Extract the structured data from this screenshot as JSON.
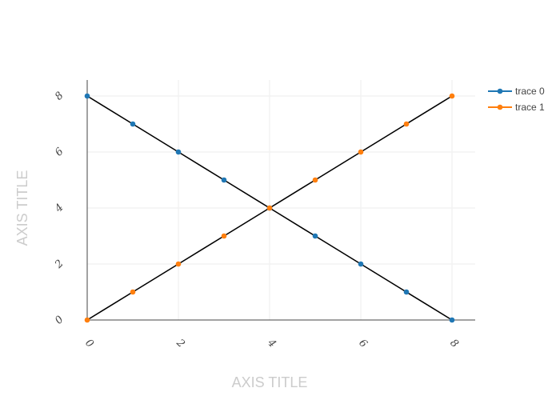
{
  "chart_data": {
    "type": "line",
    "title": "",
    "xlabel": "AXIS TITLE",
    "ylabel": "AXIS TITLE",
    "xlim": [
      0,
      8.5
    ],
    "ylim": [
      0,
      8.5
    ],
    "xticks": [
      0,
      2,
      4,
      6,
      8
    ],
    "yticks": [
      0,
      2,
      4,
      6,
      8
    ],
    "grid": true,
    "legend_position": "top-right",
    "series": [
      {
        "name": "trace 0",
        "color": "#1f77b4",
        "x": [
          0,
          1,
          2,
          3,
          4,
          5,
          6,
          7,
          8
        ],
        "y": [
          8,
          7,
          6,
          5,
          4,
          3,
          2,
          1,
          0
        ]
      },
      {
        "name": "trace 1",
        "color": "#ff7f0e",
        "x": [
          0,
          1,
          2,
          3,
          4,
          5,
          6,
          7,
          8
        ],
        "y": [
          0,
          1,
          2,
          3,
          4,
          5,
          6,
          7,
          8
        ]
      }
    ],
    "line_color": "#000000"
  }
}
